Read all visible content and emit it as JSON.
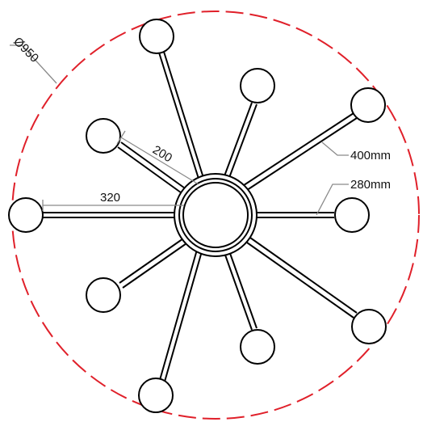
{
  "drawing": {
    "outline_color": "#e0202a",
    "line_color": "#000000",
    "dimension_color": "#8a8a8a",
    "dimensions": {
      "diameter": "Ø950",
      "long_arm": "400mm",
      "short_arm": "280mm",
      "arm_offset": "200",
      "horizontal_reach": "320"
    }
  }
}
